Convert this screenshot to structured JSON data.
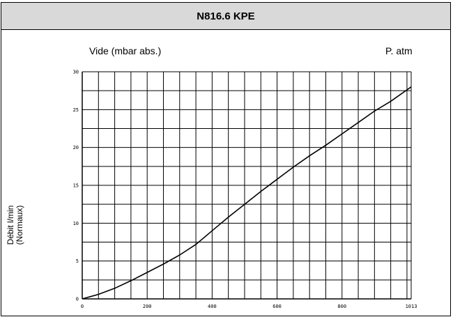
{
  "header": {
    "title": "N816.6 KPE"
  },
  "chart_data": {
    "type": "line",
    "title": "N816.6 KPE",
    "top_label_left": "Vide (mbar abs.)",
    "top_label_right": "P. atm",
    "ylabel_line1": "Débit l/min",
    "ylabel_line2": "(Normaux)",
    "xlim": [
      0,
      1013
    ],
    "ylim": [
      0,
      30
    ],
    "x_ticks": [
      0,
      200,
      400,
      600,
      800,
      1013
    ],
    "x_tick_labels": [
      "0",
      "200",
      "400",
      "600",
      "800",
      "1013"
    ],
    "y_ticks": [
      0,
      5,
      10,
      15,
      20,
      25,
      30
    ],
    "y_tick_labels": [
      "0",
      "5",
      "10",
      "15",
      "20",
      "25",
      "30"
    ],
    "grid": true,
    "series": [
      {
        "x": [
          0,
          50,
          100,
          150,
          200,
          250,
          300,
          350,
          400,
          450,
          500,
          550,
          600,
          650,
          700,
          750,
          800,
          850,
          900,
          950,
          1013
        ],
        "y": [
          0,
          0.6,
          1.4,
          2.4,
          3.5,
          4.6,
          5.8,
          7.2,
          9.0,
          10.8,
          12.5,
          14.2,
          15.8,
          17.4,
          18.9,
          20.3,
          21.8,
          23.3,
          24.8,
          26.1,
          28.0
        ]
      }
    ]
  }
}
